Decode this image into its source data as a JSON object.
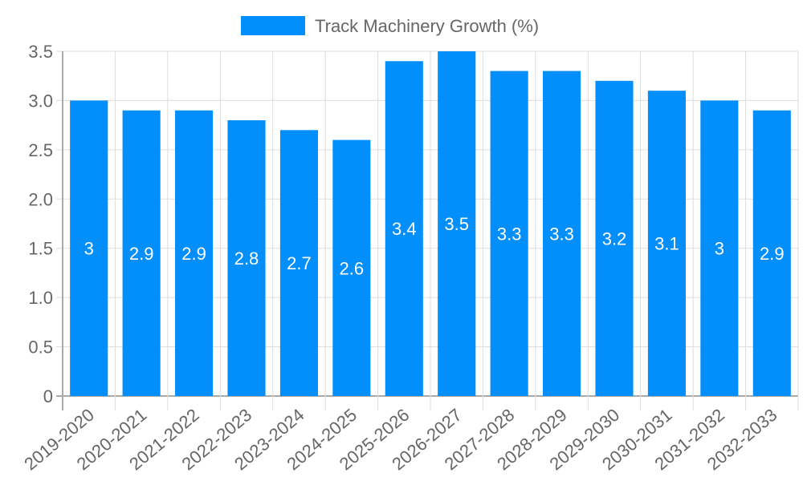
{
  "legend": {
    "label": "Track Machinery Growth (%)",
    "color": "#038ffb"
  },
  "chart_data": {
    "type": "bar",
    "title": "",
    "xlabel": "",
    "ylabel": "",
    "categories": [
      "2019-2020",
      "2020-2021",
      "2021-2022",
      "2022-2023",
      "2023-2024",
      "2024-2025",
      "2025-2026",
      "2026-2027",
      "2027-2028",
      "2028-2029",
      "2029-2030",
      "2030-2031",
      "2031-2032",
      "2032-2033"
    ],
    "series": [
      {
        "name": "Track Machinery Growth (%)",
        "values": [
          3,
          2.9,
          2.9,
          2.8,
          2.7,
          2.6,
          3.4,
          3.5,
          3.3,
          3.3,
          3.2,
          3.1,
          3,
          2.9
        ],
        "color": "#038ffb"
      }
    ],
    "ylim": [
      0,
      3.5
    ],
    "yticks": [
      "0",
      "0.5",
      "1.0",
      "1.5",
      "2.0",
      "2.5",
      "3.0",
      "3.5"
    ],
    "grid": true,
    "legend_position": "top",
    "data_labels": true
  }
}
